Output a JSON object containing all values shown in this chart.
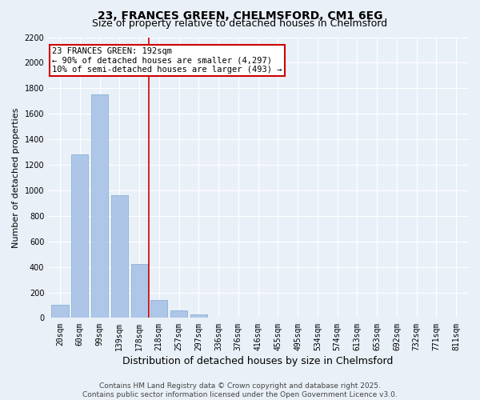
{
  "title1": "23, FRANCES GREEN, CHELMSFORD, CM1 6EG",
  "title2": "Size of property relative to detached houses in Chelmsford",
  "xlabel": "Distribution of detached houses by size in Chelmsford",
  "ylabel": "Number of detached properties",
  "categories": [
    "20sqm",
    "60sqm",
    "99sqm",
    "139sqm",
    "178sqm",
    "218sqm",
    "257sqm",
    "297sqm",
    "336sqm",
    "376sqm",
    "416sqm",
    "455sqm",
    "495sqm",
    "534sqm",
    "574sqm",
    "613sqm",
    "653sqm",
    "692sqm",
    "732sqm",
    "771sqm",
    "811sqm"
  ],
  "values": [
    100,
    1280,
    1750,
    960,
    420,
    140,
    60,
    30,
    5,
    2,
    1,
    0,
    0,
    0,
    0,
    0,
    0,
    0,
    0,
    0,
    0
  ],
  "bar_color": "#aec6e8",
  "bar_edge_color": "#7aaad0",
  "vline_x": 4.5,
  "vline_color": "#cc0000",
  "annotation_line1": "23 FRANCES GREEN: 192sqm",
  "annotation_line2": "← 90% of detached houses are smaller (4,297)",
  "annotation_line3": "10% of semi-detached houses are larger (493) →",
  "annotation_box_color": "#ffffff",
  "annotation_box_edge": "#cc0000",
  "ylim": [
    0,
    2200
  ],
  "yticks": [
    0,
    200,
    400,
    600,
    800,
    1000,
    1200,
    1400,
    1600,
    1800,
    2000,
    2200
  ],
  "background_color": "#eaf0f8",
  "grid_color": "#ffffff",
  "footer1": "Contains HM Land Registry data © Crown copyright and database right 2025.",
  "footer2": "Contains public sector information licensed under the Open Government Licence v3.0.",
  "title1_fontsize": 10,
  "title2_fontsize": 9,
  "xlabel_fontsize": 9,
  "ylabel_fontsize": 8,
  "tick_fontsize": 7,
  "annot_fontsize": 7.5,
  "footer_fontsize": 6.5
}
